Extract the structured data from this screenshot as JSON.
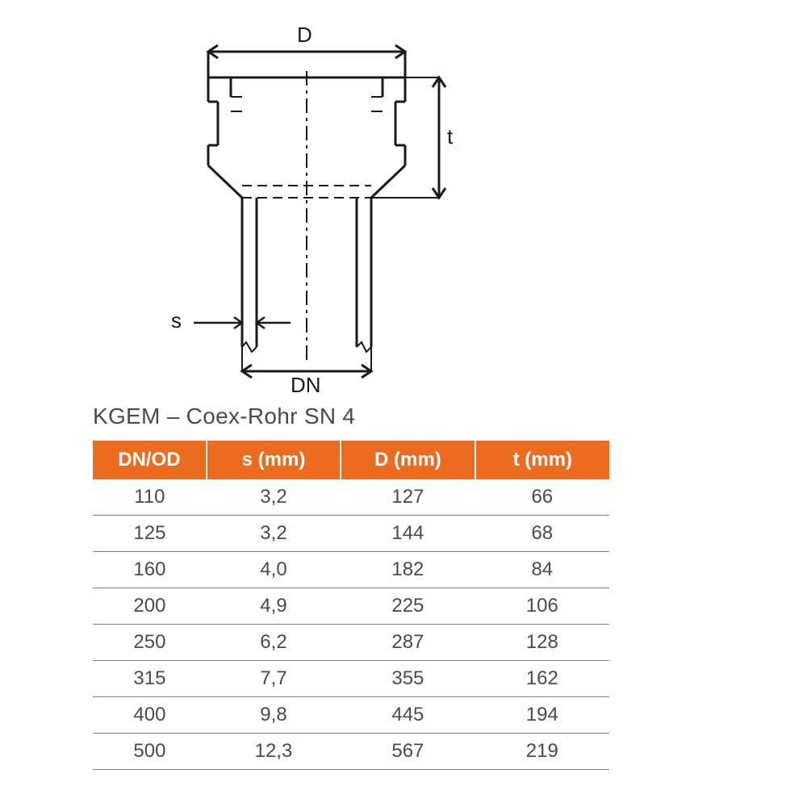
{
  "diagram": {
    "labels": {
      "D": "D",
      "t": "t",
      "s": "s",
      "DN": "DN"
    },
    "colors": {
      "stroke": "#1a1a1a",
      "label": "#1a1a1a"
    },
    "stroke_width": 3,
    "arrow_size": 9
  },
  "table": {
    "title": "KGEM – Coex-Rohr SN 4",
    "header_bg": "#ec6b1f",
    "header_fg": "#ffffff",
    "row_border": "#808080",
    "cell_fg": "#4a4a4a",
    "title_fontsize": 28,
    "header_fontsize": 24,
    "cell_fontsize": 24,
    "columns": [
      "DN/OD",
      "s (mm)",
      "D (mm)",
      "t (mm)"
    ],
    "col_widths_pct": [
      22,
      26,
      26,
      26
    ],
    "rows": [
      [
        "110",
        "3,2",
        "127",
        "66"
      ],
      [
        "125",
        "3,2",
        "144",
        "68"
      ],
      [
        "160",
        "4,0",
        "182",
        "84"
      ],
      [
        "200",
        "4,9",
        "225",
        "106"
      ],
      [
        "250",
        "6,2",
        "287",
        "128"
      ],
      [
        "315",
        "7,7",
        "355",
        "162"
      ],
      [
        "400",
        "9,8",
        "445",
        "194"
      ],
      [
        "500",
        "12,3",
        "567",
        "219"
      ]
    ]
  }
}
